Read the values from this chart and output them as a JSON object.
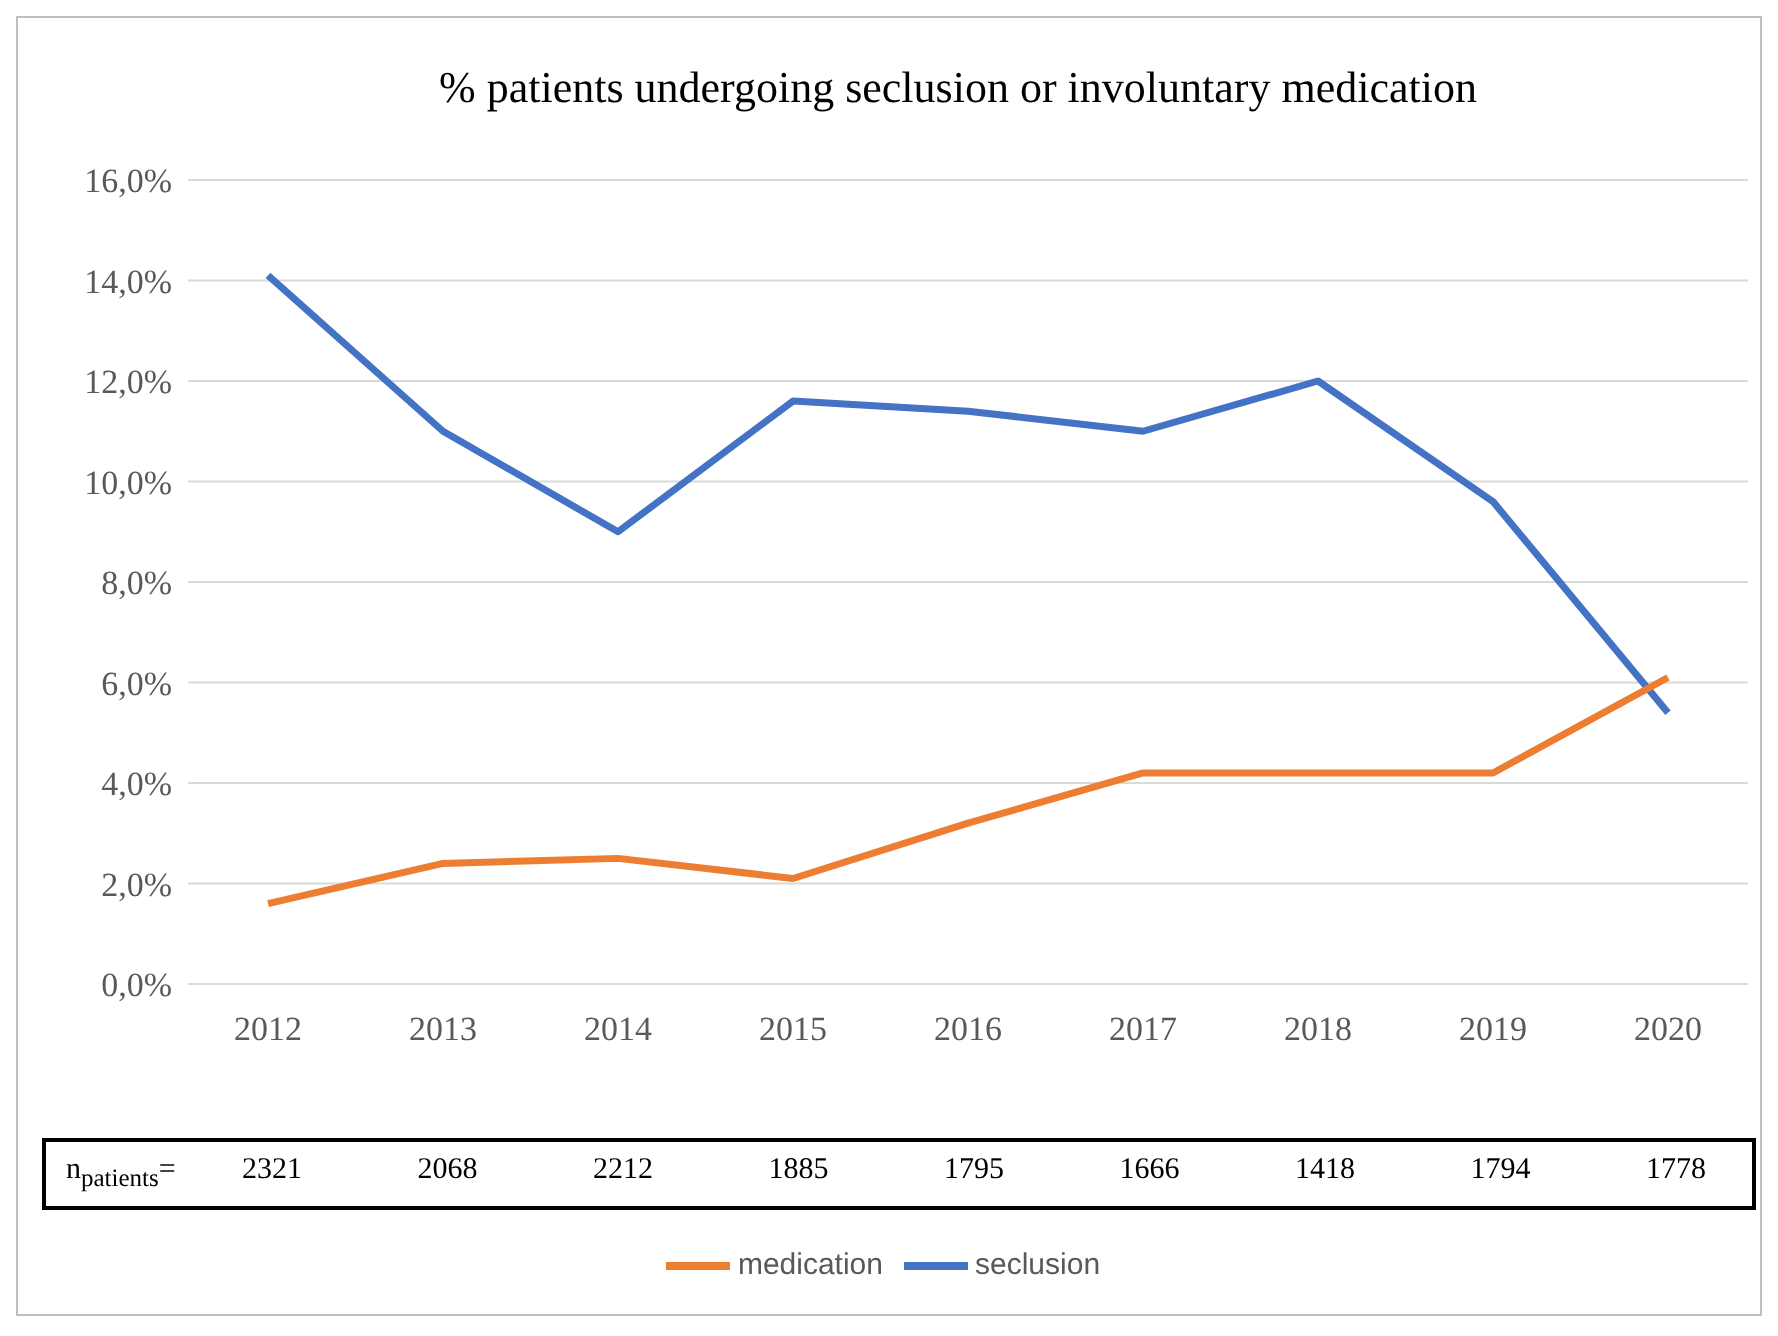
{
  "chart_data": {
    "type": "line",
    "title": "% patients undergoing seclusion or involuntary medication",
    "categories": [
      "2012",
      "2013",
      "2014",
      "2015",
      "2016",
      "2017",
      "2018",
      "2019",
      "2020"
    ],
    "series": [
      {
        "name": "seclusion",
        "color": "#4472c4",
        "values": [
          14.1,
          11.0,
          9.0,
          11.6,
          11.4,
          11.0,
          12.0,
          9.6,
          5.4
        ]
      },
      {
        "name": "medication",
        "color": "#ed7d31",
        "values": [
          1.6,
          2.4,
          2.5,
          2.1,
          3.2,
          4.2,
          4.2,
          4.2,
          6.1
        ]
      }
    ],
    "ylim": [
      0,
      16
    ],
    "yticks": [
      {
        "value": 0,
        "label": "0,0%"
      },
      {
        "value": 2,
        "label": "2,0%"
      },
      {
        "value": 4,
        "label": "4,0%"
      },
      {
        "value": 6,
        "label": "6,0%"
      },
      {
        "value": 8,
        "label": "8,0%"
      },
      {
        "value": 10,
        "label": "10,0%"
      },
      {
        "value": 12,
        "label": "12,0%"
      },
      {
        "value": 14,
        "label": "14,0%"
      },
      {
        "value": 16,
        "label": "16,0%"
      }
    ],
    "grid": "y",
    "legend": "bottom",
    "marker": "none",
    "line_style": "solid",
    "annotations": [
      "n$_{patients}$=",
      "2321",
      "2068",
      "2212",
      "1885",
      "1795",
      "1666",
      "1418",
      "1794",
      "1778"
    ]
  }
}
